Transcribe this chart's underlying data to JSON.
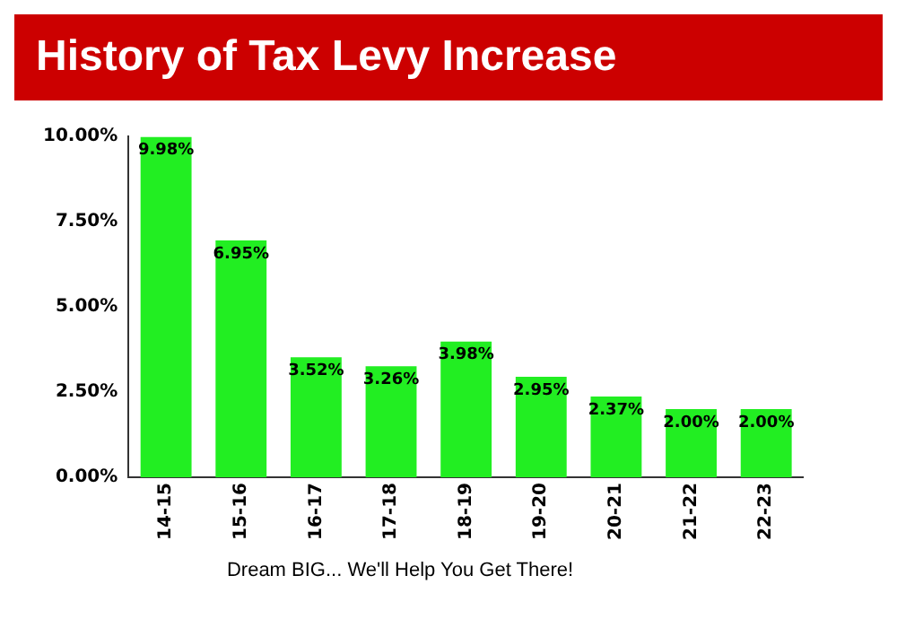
{
  "chart_data": {
    "type": "bar",
    "title": "History of Tax  Levy Increase",
    "categories": [
      "14-15",
      "15-16",
      "16-17",
      "17-18",
      "18-19",
      "19-20",
      "20-21",
      "21-22",
      "22-23"
    ],
    "values": [
      9.98,
      6.95,
      3.52,
      3.26,
      3.98,
      2.95,
      2.37,
      2.0,
      2.0
    ],
    "value_labels": [
      "9.98%",
      "6.95%",
      "3.52%",
      "3.26%",
      "3.98%",
      "2.95%",
      "2.37%",
      "2.00%",
      "2.00%"
    ],
    "color": "#22ee22",
    "ylim": [
      0,
      10
    ],
    "yticks": [
      {
        "value": 0,
        "label": "0.00%"
      },
      {
        "value": 2.5,
        "label": "2.50%"
      },
      {
        "value": 5,
        "label": "5.00%"
      },
      {
        "value": 7.5,
        "label": "7.50%"
      },
      {
        "value": 10,
        "label": "10.00%"
      }
    ],
    "grid": false,
    "legend": false,
    "annotations": [
      "Dream BIG... We'll Help You Get There!"
    ]
  }
}
